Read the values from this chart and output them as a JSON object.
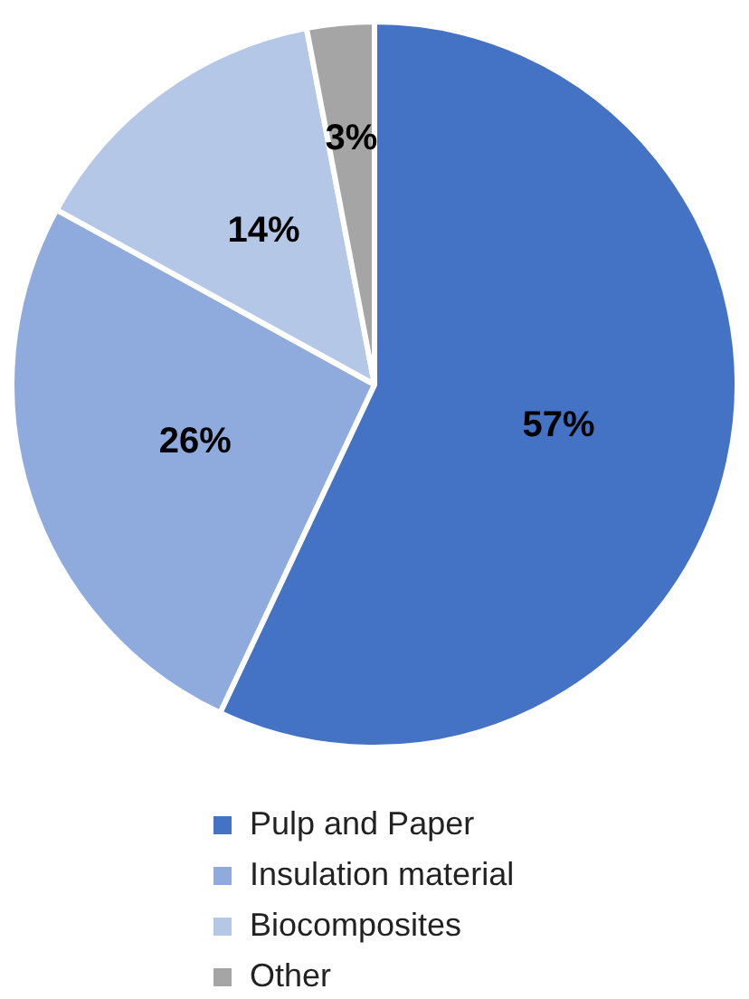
{
  "chart_data": {
    "type": "pie",
    "categories": [
      "Pulp and Paper",
      "Insulation material",
      "Biocomposites",
      "Other"
    ],
    "values": [
      57,
      26,
      14,
      3
    ],
    "colors": [
      "#4472c4",
      "#8faadc",
      "#b4c7e7",
      "#a5a5a5"
    ],
    "value_labels": [
      "57%",
      "26%",
      "14%",
      "3%"
    ],
    "legend": "bottom"
  }
}
